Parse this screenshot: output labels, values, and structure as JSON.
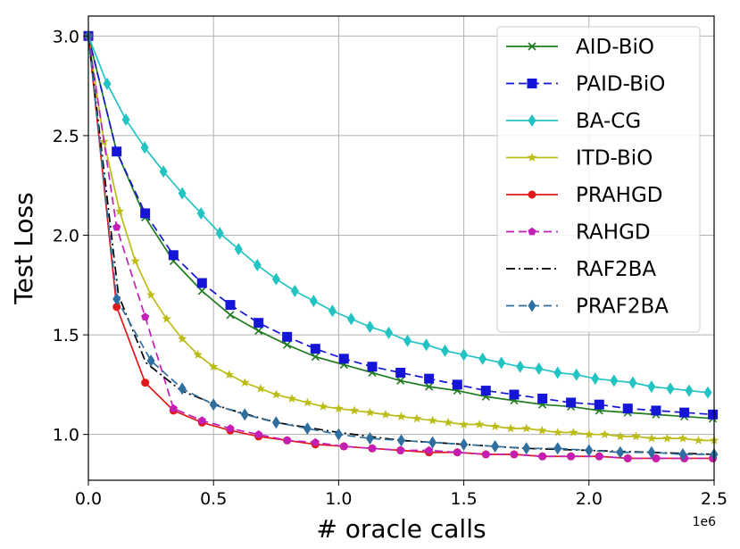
{
  "chart_data": {
    "type": "line",
    "xlabel": "# oracle calls",
    "ylabel": "Test Loss",
    "x_offset_label": "1e6",
    "xlim": [
      0,
      2.5
    ],
    "ylim": [
      0.77,
      3.1
    ],
    "x_ticks": [
      0.0,
      0.5,
      1.0,
      1.5,
      2.0,
      2.5
    ],
    "x_tick_labels": [
      "0.0",
      "0.5",
      "1.0",
      "1.5",
      "2.0",
      "2.5"
    ],
    "y_ticks": [
      1.0,
      1.5,
      2.0,
      2.5,
      3.0
    ],
    "y_tick_labels": [
      "1.0",
      "1.5",
      "2.0",
      "2.5",
      "3.0"
    ],
    "grid": true,
    "legend_position": "top-right",
    "series": [
      {
        "name": "AID-BiO",
        "color": "#1e7b1e",
        "dash": "solid",
        "marker": "x",
        "x": [
          0,
          0.113,
          0.227,
          0.34,
          0.454,
          0.567,
          0.68,
          0.794,
          0.907,
          1.021,
          1.134,
          1.247,
          1.361,
          1.474,
          1.588,
          1.701,
          1.814,
          1.928,
          2.041,
          2.155,
          2.268,
          2.381,
          2.495
        ],
        "y": [
          3.0,
          2.42,
          2.09,
          1.87,
          1.72,
          1.6,
          1.52,
          1.45,
          1.39,
          1.35,
          1.31,
          1.27,
          1.24,
          1.22,
          1.19,
          1.17,
          1.15,
          1.14,
          1.12,
          1.11,
          1.1,
          1.09,
          1.08
        ]
      },
      {
        "name": "PAID-BiO",
        "color": "#1515d8",
        "dash": "dashed",
        "marker": "square",
        "x": [
          0,
          0.113,
          0.227,
          0.34,
          0.454,
          0.567,
          0.68,
          0.794,
          0.907,
          1.021,
          1.134,
          1.247,
          1.361,
          1.474,
          1.588,
          1.701,
          1.814,
          1.928,
          2.041,
          2.155,
          2.268,
          2.381,
          2.495
        ],
        "y": [
          3.0,
          2.42,
          2.11,
          1.9,
          1.76,
          1.65,
          1.56,
          1.49,
          1.43,
          1.38,
          1.34,
          1.31,
          1.28,
          1.25,
          1.22,
          1.2,
          1.18,
          1.16,
          1.15,
          1.13,
          1.12,
          1.11,
          1.1
        ]
      },
      {
        "name": "BA-CG",
        "color": "#22c3c3",
        "dash": "solid",
        "marker": "thin-diamond",
        "x": [
          0,
          0.075,
          0.15,
          0.225,
          0.3,
          0.375,
          0.45,
          0.525,
          0.6,
          0.675,
          0.75,
          0.825,
          0.9,
          0.975,
          1.05,
          1.125,
          1.2,
          1.275,
          1.35,
          1.425,
          1.5,
          1.575,
          1.65,
          1.725,
          1.8,
          1.875,
          1.95,
          2.025,
          2.1,
          2.175,
          2.25,
          2.325,
          2.4,
          2.475
        ],
        "y": [
          3.0,
          2.76,
          2.58,
          2.44,
          2.32,
          2.21,
          2.11,
          2.01,
          1.93,
          1.85,
          1.78,
          1.72,
          1.67,
          1.62,
          1.58,
          1.54,
          1.51,
          1.47,
          1.45,
          1.42,
          1.4,
          1.38,
          1.36,
          1.34,
          1.33,
          1.31,
          1.3,
          1.28,
          1.27,
          1.26,
          1.24,
          1.23,
          1.22,
          1.21
        ]
      },
      {
        "name": "ITD-BiO",
        "color": "#bcbc16",
        "dash": "solid",
        "marker": "star",
        "x": [
          0,
          0.0625,
          0.125,
          0.1875,
          0.25,
          0.3125,
          0.375,
          0.4375,
          0.5,
          0.5625,
          0.625,
          0.6875,
          0.75,
          0.8125,
          0.875,
          0.9375,
          1.0,
          1.0625,
          1.125,
          1.1875,
          1.25,
          1.3125,
          1.375,
          1.4375,
          1.5,
          1.5625,
          1.625,
          1.6875,
          1.75,
          1.8125,
          1.875,
          1.9375,
          2.0,
          2.0625,
          2.125,
          2.1875,
          2.25,
          2.3125,
          2.375,
          2.4375,
          2.5
        ],
        "y": [
          3.0,
          2.47,
          2.12,
          1.87,
          1.7,
          1.58,
          1.48,
          1.4,
          1.34,
          1.3,
          1.26,
          1.23,
          1.2,
          1.18,
          1.16,
          1.14,
          1.13,
          1.12,
          1.11,
          1.1,
          1.09,
          1.08,
          1.07,
          1.06,
          1.05,
          1.05,
          1.04,
          1.03,
          1.03,
          1.02,
          1.01,
          1.01,
          1.0,
          1.0,
          0.99,
          0.99,
          0.98,
          0.98,
          0.98,
          0.97,
          0.97
        ]
      },
      {
        "name": "PRAHGD",
        "color": "#e01a1a",
        "dash": "solid",
        "marker": "circle",
        "x": [
          0,
          0.113,
          0.227,
          0.34,
          0.454,
          0.567,
          0.68,
          0.794,
          0.907,
          1.021,
          1.134,
          1.247,
          1.361,
          1.474,
          1.588,
          1.701,
          1.814,
          1.928,
          2.041,
          2.155,
          2.268,
          2.381,
          2.495
        ],
        "y": [
          3.0,
          1.64,
          1.26,
          1.12,
          1.06,
          1.02,
          0.99,
          0.97,
          0.95,
          0.94,
          0.93,
          0.92,
          0.91,
          0.91,
          0.9,
          0.9,
          0.89,
          0.89,
          0.89,
          0.88,
          0.88,
          0.88,
          0.88
        ]
      },
      {
        "name": "RAHGD",
        "color": "#c31fb8",
        "dash": "dashed",
        "marker": "pentagon",
        "x": [
          0,
          0.113,
          0.227,
          0.34,
          0.454,
          0.567,
          0.68,
          0.794,
          0.907,
          1.021,
          1.134,
          1.247,
          1.361,
          1.474,
          1.588,
          1.701,
          1.814,
          1.928,
          2.041,
          2.155,
          2.268,
          2.381,
          2.495
        ],
        "y": [
          3.0,
          2.04,
          1.59,
          1.13,
          1.07,
          1.03,
          1.0,
          0.97,
          0.96,
          0.94,
          0.93,
          0.92,
          0.92,
          0.91,
          0.9,
          0.9,
          0.89,
          0.89,
          0.89,
          0.88,
          0.88,
          0.88,
          0.88
        ]
      },
      {
        "name": "RAF2BA",
        "color": "#000000",
        "dash": "dashdot",
        "marker": "none",
        "x": [
          0,
          0.12,
          0.23,
          0.37,
          0.55,
          0.75,
          1.0,
          1.25,
          1.5,
          1.75,
          2.0,
          2.25,
          2.5
        ],
        "y": [
          3.0,
          1.7,
          1.36,
          1.22,
          1.13,
          1.06,
          1.01,
          0.97,
          0.95,
          0.93,
          0.92,
          0.91,
          0.9
        ]
      },
      {
        "name": "PRAF2BA",
        "color": "#2f6f9f",
        "dash": "dashed",
        "marker": "thin-diamond",
        "x": [
          0,
          0.113,
          0.25,
          0.375,
          0.5,
          0.625,
          0.75,
          0.875,
          1.0,
          1.125,
          1.25,
          1.375,
          1.5,
          1.625,
          1.75,
          1.875,
          2.0,
          2.125,
          2.25,
          2.375,
          2.5
        ],
        "y": [
          3.0,
          1.68,
          1.37,
          1.23,
          1.15,
          1.1,
          1.06,
          1.03,
          1.0,
          0.98,
          0.97,
          0.96,
          0.95,
          0.94,
          0.93,
          0.93,
          0.92,
          0.91,
          0.91,
          0.9,
          0.9
        ]
      }
    ]
  }
}
